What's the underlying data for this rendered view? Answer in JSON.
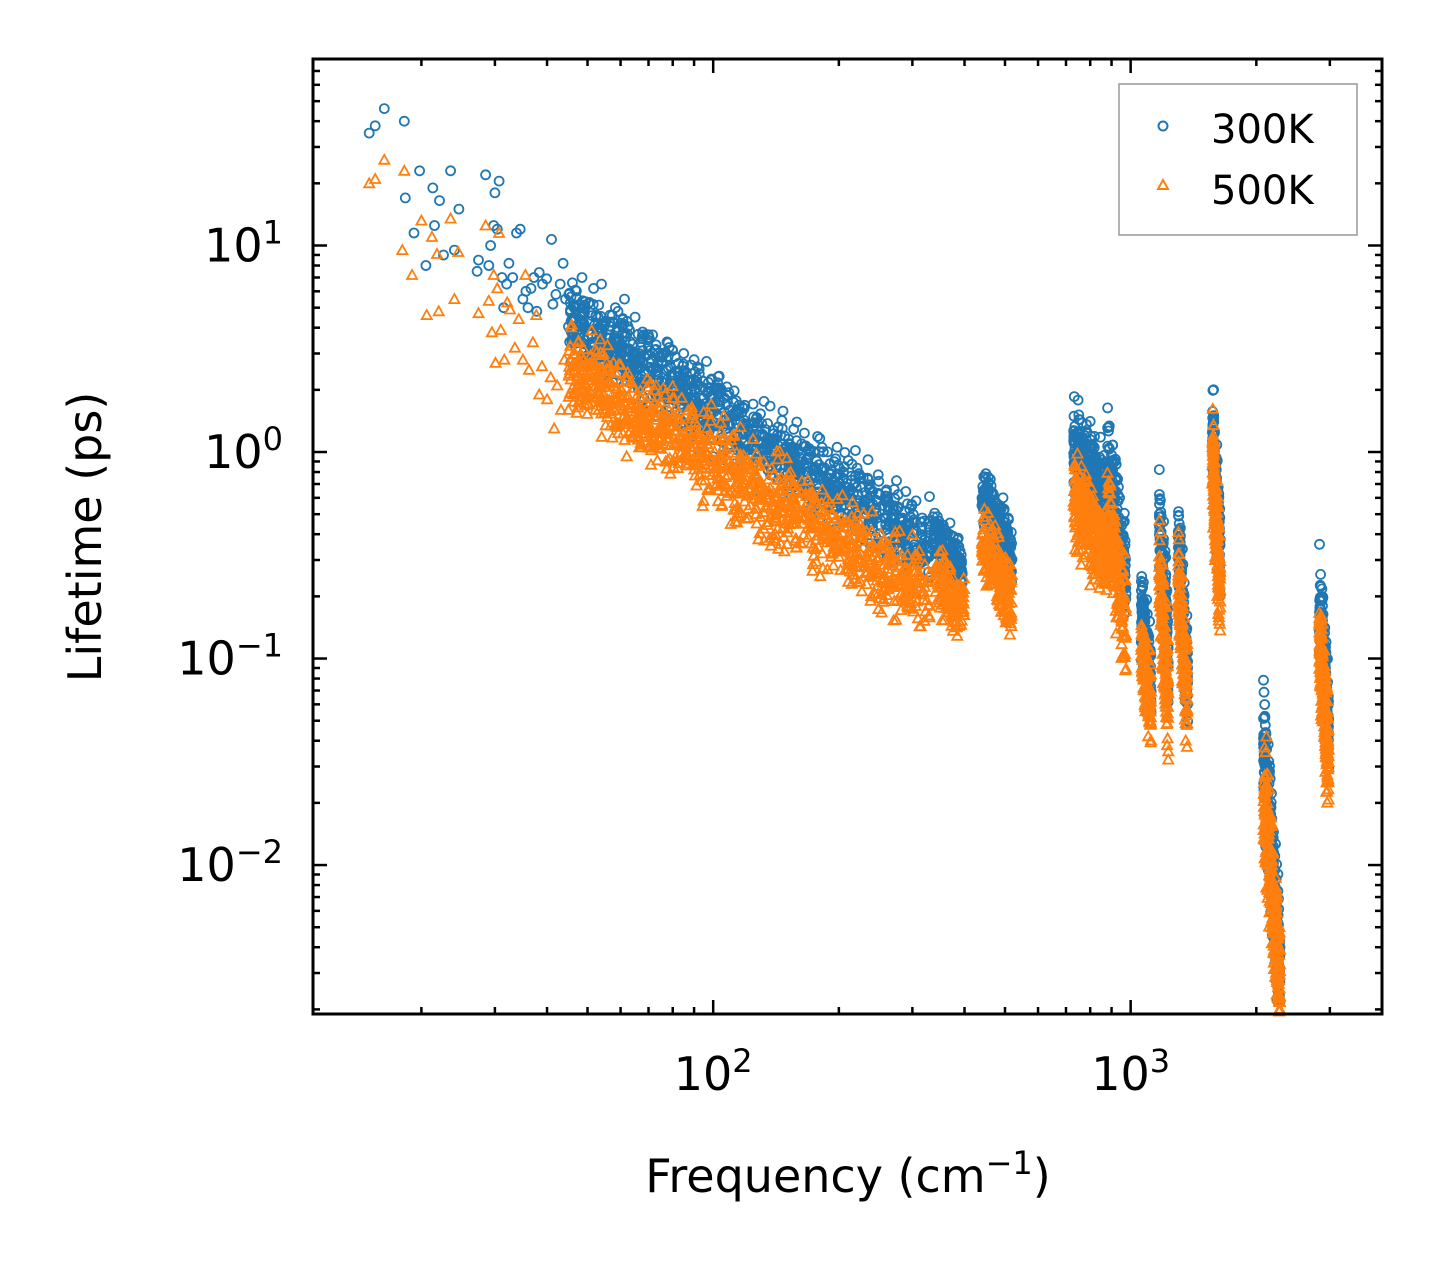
{
  "chart_data": {
    "type": "scatter",
    "title": "",
    "xlabel": "Frequency (cm",
    "xlabel_sup": "−1",
    "xlabel_end": ")",
    "ylabel": "Lifetime (ps)",
    "xscale": "log",
    "yscale": "log",
    "xlim": [
      11,
      4000
    ],
    "ylim": [
      0.0019,
      80
    ],
    "x_ticks": [
      {
        "value": 100,
        "base": "10",
        "exp": "2"
      },
      {
        "value": 1000,
        "base": "10",
        "exp": "3"
      }
    ],
    "y_ticks": [
      {
        "value": 10,
        "base": "10",
        "exp": "1"
      },
      {
        "value": 1,
        "base": "10",
        "exp": "0"
      },
      {
        "value": 0.1,
        "base": "10",
        "exp": "−1"
      },
      {
        "value": 0.01,
        "base": "10",
        "exp": "−2"
      }
    ],
    "legend_position": "top-right",
    "series": [
      {
        "name": "300K",
        "marker": "circle",
        "color": "#1f77b4",
        "low_freq_points": [
          [
            15.0,
            35
          ],
          [
            15.5,
            38
          ],
          [
            16.3,
            46
          ],
          [
            18.2,
            40
          ],
          [
            18.3,
            17
          ],
          [
            19.2,
            11.5
          ],
          [
            19.8,
            23
          ],
          [
            20.5,
            8
          ],
          [
            21.3,
            19
          ],
          [
            21.5,
            12.5
          ],
          [
            22.1,
            16.5
          ],
          [
            22.6,
            9
          ],
          [
            23.5,
            23
          ],
          [
            24.0,
            9.5
          ],
          [
            24.6,
            15
          ],
          [
            27.2,
            7.5
          ],
          [
            27.4,
            8.5
          ],
          [
            28.5,
            22
          ],
          [
            29.0,
            8
          ],
          [
            29.3,
            10
          ],
          [
            29.8,
            12.5
          ],
          [
            30.0,
            18
          ],
          [
            30.4,
            12
          ],
          [
            30.7,
            20.5
          ],
          [
            31.2,
            7
          ],
          [
            31.5,
            5
          ],
          [
            32.0,
            6.5
          ],
          [
            32.4,
            8.2
          ],
          [
            33.1,
            7
          ],
          [
            33.8,
            11.5
          ],
          [
            34.5,
            12
          ],
          [
            35.0,
            5.5
          ],
          [
            35.6,
            6
          ],
          [
            36.0,
            5
          ],
          [
            36.6,
            6.2
          ],
          [
            37.2,
            7
          ],
          [
            37.8,
            4.8
          ],
          [
            38.3,
            7.4
          ],
          [
            39.0,
            6.5
          ],
          [
            39.9,
            6.9
          ],
          [
            41.0,
            10.7
          ],
          [
            41.3,
            5.2
          ],
          [
            42.0,
            5.8
          ],
          [
            43.0,
            6.5
          ],
          [
            43.7,
            8.2
          ],
          [
            44.3,
            5.5
          ],
          [
            45.1,
            5.8
          ],
          [
            46.0,
            6.6
          ],
          [
            47.0,
            5.6
          ],
          [
            48.5,
            7.0
          ],
          [
            49.3,
            5.0
          ],
          [
            50.5,
            5.3
          ],
          [
            51.7,
            6.2
          ],
          [
            53.0,
            4.5
          ],
          [
            54.0,
            6.5
          ],
          [
            55.3,
            4.3
          ],
          [
            56.6,
            4.6
          ],
          [
            58.3,
            5.0
          ],
          [
            60.0,
            4.2
          ],
          [
            61.3,
            5.5
          ],
          [
            63.0,
            3.9
          ],
          [
            65.0,
            4.5
          ],
          [
            67.0,
            3.4
          ],
          [
            70.0,
            3.6
          ],
          [
            73.0,
            3.3
          ],
          [
            76.0,
            3.0
          ],
          [
            80.0,
            3.1
          ],
          [
            85.0,
            3.0
          ],
          [
            90.0,
            2.8
          ]
        ],
        "branches": [
          {
            "f0": 45,
            "f1": 330,
            "v0": 4.3,
            "v1": 0.35,
            "spread": 1.9,
            "n": 1100
          },
          {
            "f0": 335,
            "f1": 395,
            "v0": 0.42,
            "v1": 0.27,
            "spread": 1.5,
            "n": 150
          },
          {
            "f0": 440,
            "f1": 520,
            "v0": 0.62,
            "v1": 0.32,
            "spread": 1.7,
            "n": 200
          },
          {
            "f0": 730,
            "f1": 880,
            "v0": 1.1,
            "v1": 0.55,
            "spread": 2.0,
            "n": 260
          },
          {
            "f0": 880,
            "f1": 975,
            "v0": 0.9,
            "v1": 0.24,
            "spread": 2.3,
            "n": 160
          },
          {
            "f0": 1060,
            "f1": 1120,
            "v0": 0.17,
            "v1": 0.075,
            "spread": 1.9,
            "n": 130
          },
          {
            "f0": 1170,
            "f1": 1230,
            "v0": 0.5,
            "v1": 0.1,
            "spread": 2.3,
            "n": 140
          },
          {
            "f0": 1300,
            "f1": 1370,
            "v0": 0.38,
            "v1": 0.075,
            "spread": 2.2,
            "n": 140
          },
          {
            "f0": 1570,
            "f1": 1640,
            "v0": 1.35,
            "v1": 0.28,
            "spread": 2.2,
            "n": 160
          },
          {
            "f0": 2080,
            "f1": 2280,
            "v0": 0.04,
            "v1": 0.003,
            "spread": 2.6,
            "n": 280
          },
          {
            "f0": 2830,
            "f1": 2980,
            "v0": 0.2,
            "v1": 0.045,
            "spread": 2.1,
            "n": 240
          }
        ]
      },
      {
        "name": "500K",
        "marker": "triangle",
        "color": "#ff7f0e",
        "low_freq_points": [
          [
            15.0,
            20
          ],
          [
            15.5,
            21
          ],
          [
            16.3,
            26
          ],
          [
            18.0,
            9.5
          ],
          [
            18.2,
            23
          ],
          [
            19.0,
            7.2
          ],
          [
            20.0,
            13.2
          ],
          [
            20.6,
            4.6
          ],
          [
            21.2,
            11
          ],
          [
            21.8,
            9.1
          ],
          [
            22.0,
            4.8
          ],
          [
            23.5,
            13.5
          ],
          [
            24.0,
            5.5
          ],
          [
            24.5,
            9.3
          ],
          [
            27.4,
            4.7
          ],
          [
            28.5,
            12.5
          ],
          [
            29.0,
            5.4
          ],
          [
            29.5,
            3.8
          ],
          [
            29.8,
            7.2
          ],
          [
            30.1,
            2.7
          ],
          [
            30.4,
            6.2
          ],
          [
            30.7,
            11.5
          ],
          [
            31.0,
            3.9
          ],
          [
            31.6,
            2.8
          ],
          [
            32.1,
            5.3
          ],
          [
            32.6,
            4.9
          ],
          [
            33.5,
            3.2
          ],
          [
            34.2,
            4.4
          ],
          [
            35.0,
            2.8
          ],
          [
            35.5,
            7.2
          ],
          [
            36.2,
            2.5
          ],
          [
            37.0,
            3.4
          ],
          [
            37.7,
            4.6
          ],
          [
            38.3,
            1.9
          ],
          [
            38.9,
            2.6
          ],
          [
            40.0,
            1.8
          ],
          [
            40.8,
            2.3
          ],
          [
            41.6,
            1.3
          ],
          [
            42.3,
            2.1
          ],
          [
            43.2,
            1.6
          ],
          [
            44.0,
            2.8
          ],
          [
            45.0,
            1.6
          ]
        ],
        "branches": [
          {
            "f0": 45,
            "f1": 330,
            "v0": 2.5,
            "v1": 0.2,
            "spread": 2.0,
            "n": 1100
          },
          {
            "f0": 340,
            "f1": 400,
            "v0": 0.24,
            "v1": 0.17,
            "spread": 1.6,
            "n": 150
          },
          {
            "f0": 440,
            "f1": 520,
            "v0": 0.36,
            "v1": 0.19,
            "spread": 1.8,
            "n": 200
          },
          {
            "f0": 730,
            "f1": 880,
            "v0": 0.62,
            "v1": 0.3,
            "spread": 2.1,
            "n": 260
          },
          {
            "f0": 880,
            "f1": 975,
            "v0": 0.5,
            "v1": 0.14,
            "spread": 2.4,
            "n": 160
          },
          {
            "f0": 1060,
            "f1": 1120,
            "v0": 0.11,
            "v1": 0.055,
            "spread": 2.0,
            "n": 130
          },
          {
            "f0": 1170,
            "f1": 1230,
            "v0": 0.28,
            "v1": 0.06,
            "spread": 2.4,
            "n": 140
          },
          {
            "f0": 1300,
            "f1": 1370,
            "v0": 0.23,
            "v1": 0.058,
            "spread": 2.3,
            "n": 140
          },
          {
            "f0": 1570,
            "f1": 1640,
            "v0": 1.0,
            "v1": 0.2,
            "spread": 2.3,
            "n": 160
          },
          {
            "f0": 2080,
            "f1": 2280,
            "v0": 0.025,
            "v1": 0.0025,
            "spread": 2.7,
            "n": 280
          },
          {
            "f0": 2830,
            "f1": 2980,
            "v0": 0.13,
            "v1": 0.03,
            "spread": 2.2,
            "n": 240
          }
        ]
      }
    ]
  }
}
